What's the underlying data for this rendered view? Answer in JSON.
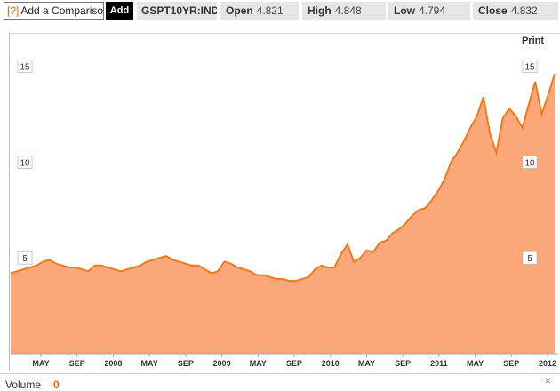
{
  "toolbar": {
    "compare_prefix": "[?]",
    "compare_placeholder": "Add a Comparison",
    "add_label": "Add",
    "ticker": "GSPT10YR:IND",
    "open_label": "Open",
    "open_value": "4.821",
    "high_label": "High",
    "high_value": "4.848",
    "low_label": "Low",
    "low_value": "4.794",
    "close_label": "Close",
    "close_value": "4.832"
  },
  "print_label": "Print",
  "footer": {
    "volume_label": "Volume",
    "volume_value": "0",
    "close_icon": "close-icon"
  },
  "colors": {
    "accent": "#e96a00",
    "line": "#f07a1a",
    "area": "#fba77a"
  },
  "chart_data": {
    "type": "area",
    "ylim": [
      0,
      16.7
    ],
    "yticks": [
      "5",
      "10",
      "15"
    ],
    "x_tick_labels": [
      "MAY",
      "SEP",
      "2008",
      "MAY",
      "SEP",
      "2009",
      "MAY",
      "SEP",
      "2010",
      "MAY",
      "SEP",
      "2011",
      "MAY",
      "SEP",
      "2012"
    ],
    "grid": false,
    "series": [
      {
        "values": [
          4.2,
          4.3,
          4.4,
          4.5,
          4.6,
          4.8,
          4.9,
          4.7,
          4.6,
          4.5,
          4.5,
          4.4,
          4.3,
          4.6,
          4.6,
          4.5,
          4.4,
          4.3,
          4.4,
          4.5,
          4.6,
          4.8,
          4.9,
          5.0,
          5.1,
          4.9,
          4.8,
          4.7,
          4.6,
          4.6,
          4.4,
          4.2,
          4.3,
          4.8,
          4.7,
          4.5,
          4.4,
          4.3,
          4.1,
          4.1,
          4.0,
          3.9,
          3.9,
          3.8,
          3.8,
          3.9,
          4.0,
          4.4,
          4.6,
          4.5,
          4.5,
          5.2,
          5.7,
          4.8,
          5.0,
          5.4,
          5.3,
          5.8,
          5.9,
          6.3,
          6.5,
          6.8,
          7.2,
          7.5,
          7.6,
          8.0,
          8.5,
          9.1,
          10.0,
          10.5,
          11.1,
          11.8,
          12.4,
          13.4,
          11.5,
          10.5,
          12.3,
          12.8,
          12.4,
          11.8,
          13.0,
          14.2,
          12.5,
          13.5,
          14.6
        ]
      }
    ]
  }
}
